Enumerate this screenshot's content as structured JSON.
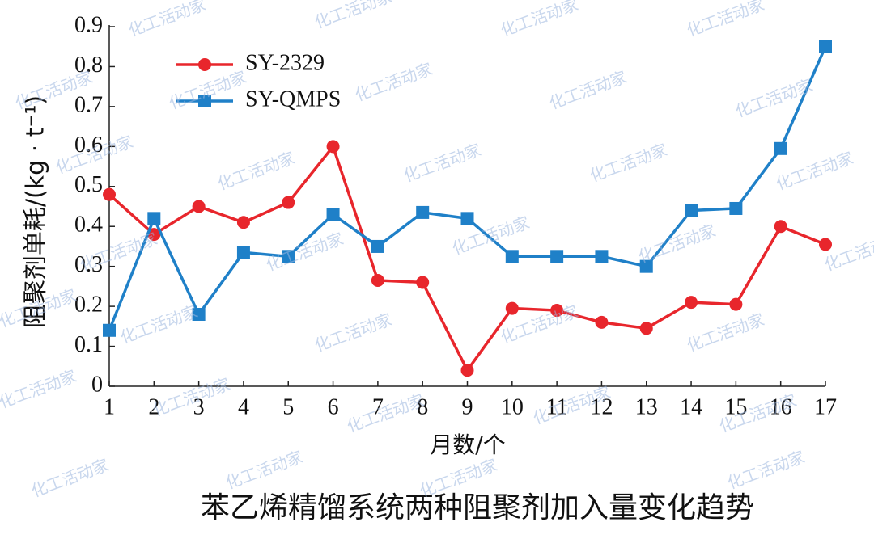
{
  "chart_data": {
    "type": "line",
    "title": "苯乙烯精馏系统两种阻聚剂加入量变化趋势",
    "x_label": "月数/个",
    "y_label": "阻聚剂单耗/(kg · t⁻¹)",
    "x": [
      1,
      2,
      3,
      4,
      5,
      6,
      7,
      8,
      9,
      10,
      11,
      12,
      13,
      14,
      15,
      16,
      17
    ],
    "series": [
      {
        "name": "SY-2329",
        "color": "#e8262c",
        "marker": "circle",
        "values": [
          0.48,
          0.38,
          0.45,
          0.41,
          0.46,
          0.6,
          0.265,
          0.26,
          0.04,
          0.195,
          0.19,
          0.16,
          0.145,
          0.21,
          0.205,
          0.4,
          0.355
        ]
      },
      {
        "name": "SY-QMPS",
        "color": "#1f80c8",
        "marker": "square",
        "values": [
          0.14,
          0.42,
          0.18,
          0.335,
          0.325,
          0.43,
          0.35,
          0.435,
          0.42,
          0.325,
          0.325,
          0.325,
          0.3,
          0.44,
          0.445,
          0.595,
          0.85
        ]
      }
    ],
    "xlim": [
      1,
      17
    ],
    "xticks": [
      1,
      2,
      3,
      4,
      5,
      6,
      7,
      8,
      9,
      10,
      11,
      12,
      13,
      14,
      15,
      16,
      17
    ],
    "ylim": [
      0,
      0.9
    ],
    "yticks": [
      0,
      0.1,
      0.2,
      0.3,
      0.4,
      0.5,
      0.6,
      0.7,
      0.8,
      0.9
    ],
    "legend": "upper-left",
    "grid": false
  },
  "watermark": "化工活动家"
}
